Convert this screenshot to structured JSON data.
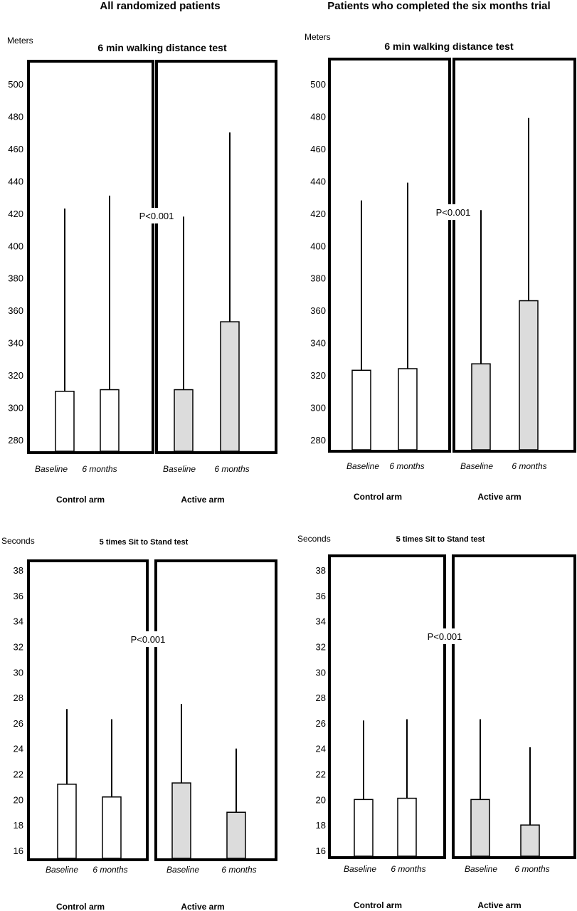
{
  "column_titles": [
    "All randomized patients",
    "Patients who completed the six months trial"
  ],
  "colors": {
    "control_fill": "#ffffff",
    "active_fill": "#dcdcdc",
    "stroke": "#000000"
  },
  "chart_data": [
    {
      "type": "bar",
      "title": "6 min walking distance test",
      "ylabel": "Meters",
      "ylim": [
        270,
        510
      ],
      "yticks": [
        280,
        300,
        320,
        340,
        360,
        380,
        400,
        420,
        440,
        460,
        480,
        500
      ],
      "groups": [
        "Control arm",
        "Active arm"
      ],
      "categories": [
        "Baseline",
        "6 months",
        "Baseline",
        "6 months"
      ],
      "values": [
        310,
        311,
        311,
        353
      ],
      "error_upper": [
        423,
        431,
        418,
        470
      ],
      "annotation": "P<0.001",
      "grid": false
    },
    {
      "type": "bar",
      "title": "6 min walking distance test",
      "ylabel": "Meters",
      "ylim": [
        270,
        510
      ],
      "yticks": [
        280,
        300,
        320,
        340,
        360,
        380,
        400,
        420,
        440,
        460,
        480,
        500
      ],
      "groups": [
        "Control arm",
        "Active arm"
      ],
      "categories": [
        "Baseline",
        "6 months",
        "Baseline",
        "6 months"
      ],
      "values": [
        323,
        324,
        327,
        366
      ],
      "error_upper": [
        428,
        439,
        422,
        479
      ],
      "annotation": "P<0.001",
      "grid": false
    },
    {
      "type": "bar",
      "title": "5 times Sit to Stand test",
      "ylabel": "Seconds",
      "ylim": [
        15.5,
        39
      ],
      "yticks": [
        16,
        18,
        20,
        22,
        24,
        26,
        28,
        30,
        32,
        34,
        36,
        38
      ],
      "groups": [
        "Control arm",
        "Active arm"
      ],
      "categories": [
        "Baseline",
        "6 months",
        "Baseline",
        "6 months"
      ],
      "values": [
        21.2,
        20.2,
        21.3,
        19.0
      ],
      "error_upper": [
        27.1,
        26.3,
        27.5,
        24.0
      ],
      "annotation": "P<0.001",
      "grid": false
    },
    {
      "type": "bar",
      "title": "5 times Sit to Stand test",
      "ylabel": "Seconds",
      "ylim": [
        15.5,
        39
      ],
      "yticks": [
        16,
        18,
        20,
        22,
        24,
        26,
        28,
        30,
        32,
        34,
        36,
        38
      ],
      "groups": [
        "Control arm",
        "Active arm"
      ],
      "categories": [
        "Baseline",
        "6 months",
        "Baseline",
        "6 months"
      ],
      "values": [
        20.0,
        20.1,
        20.0,
        18.0
      ],
      "error_upper": [
        26.2,
        26.3,
        26.3,
        24.1
      ],
      "annotation": "P<0.001",
      "grid": false
    }
  ]
}
